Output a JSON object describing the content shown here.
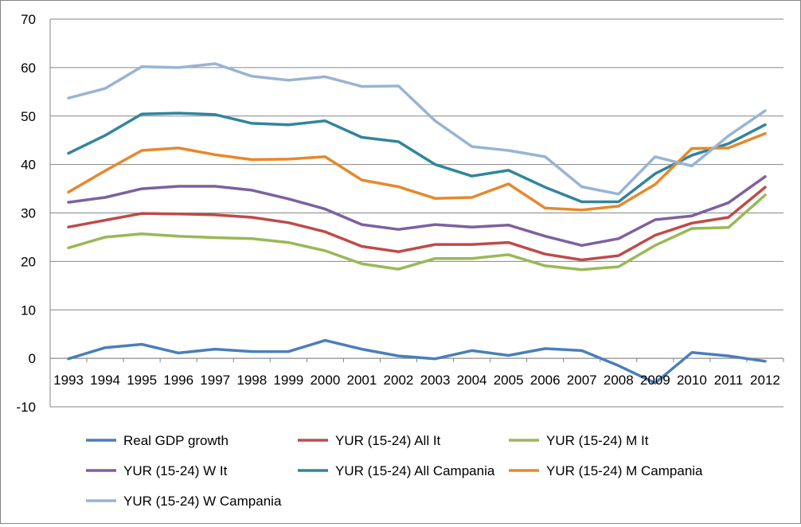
{
  "chart_data": {
    "type": "line",
    "title": "",
    "xlabel": "",
    "ylabel": "",
    "ylim": [
      -10,
      70
    ],
    "yticks": [
      -10,
      0,
      10,
      20,
      30,
      40,
      50,
      60,
      70
    ],
    "grid": "horizontal",
    "legend_position": "bottom",
    "x": [
      "1993",
      "1994",
      "1995",
      "1996",
      "1997",
      "1998",
      "1999",
      "2000",
      "2001",
      "2002",
      "2003",
      "2004",
      "2005",
      "2006",
      "2007",
      "2008",
      "2009",
      "2010",
      "2011",
      "2012"
    ],
    "series": [
      {
        "name": "Real GDP growth",
        "color": "#4A7EBB",
        "values": [
          -0.1,
          2.2,
          2.9,
          1.1,
          1.9,
          1.4,
          1.4,
          3.7,
          1.9,
          0.5,
          -0.1,
          1.6,
          0.6,
          2.0,
          1.6,
          -1.5,
          -5.1,
          1.2,
          0.5,
          -0.6
        ]
      },
      {
        "name": "YUR (15-24) All It",
        "color": "#BE4B48",
        "values": [
          27.1,
          28.5,
          29.9,
          29.8,
          29.6,
          29.1,
          28.0,
          26.1,
          23.1,
          22.0,
          23.5,
          23.5,
          23.9,
          21.5,
          20.3,
          21.2,
          25.4,
          27.9,
          29.1,
          35.3
        ]
      },
      {
        "name": "YUR (15-24) M It",
        "color": "#98B954",
        "values": [
          22.8,
          25.0,
          25.7,
          25.2,
          24.9,
          24.7,
          23.9,
          22.2,
          19.5,
          18.4,
          20.6,
          20.6,
          21.4,
          19.1,
          18.3,
          18.9,
          23.3,
          26.8,
          27.0,
          33.7
        ]
      },
      {
        "name": "YUR (15-24) W It",
        "color": "#7D60A0",
        "values": [
          32.2,
          33.2,
          35.0,
          35.5,
          35.5,
          34.7,
          32.9,
          30.8,
          27.6,
          26.6,
          27.6,
          27.1,
          27.5,
          25.2,
          23.3,
          24.7,
          28.6,
          29.4,
          32.1,
          37.5
        ]
      },
      {
        "name": "YUR (15-24) All Campania",
        "color": "#31859C",
        "values": [
          42.3,
          46.0,
          50.4,
          50.6,
          50.3,
          48.5,
          48.2,
          49.0,
          45.6,
          44.7,
          40.0,
          37.6,
          38.8,
          35.3,
          32.3,
          32.3,
          38.1,
          41.9,
          44.3,
          48.2
        ]
      },
      {
        "name": "YUR (15-24) M Campania",
        "color": "#E6882C",
        "values": [
          34.3,
          38.7,
          42.9,
          43.4,
          42.0,
          41.0,
          41.1,
          41.6,
          36.8,
          35.4,
          33.0,
          33.2,
          36.0,
          31.0,
          30.6,
          31.4,
          35.9,
          43.3,
          43.4,
          46.4
        ]
      },
      {
        "name": "YUR (15-24) W Campania",
        "color": "#98B4D4",
        "values": [
          53.7,
          55.7,
          60.2,
          60.0,
          60.8,
          58.2,
          57.4,
          58.1,
          56.1,
          56.2,
          49.0,
          43.7,
          42.9,
          41.6,
          35.4,
          33.9,
          41.6,
          39.7,
          45.9,
          51.1
        ]
      }
    ]
  }
}
